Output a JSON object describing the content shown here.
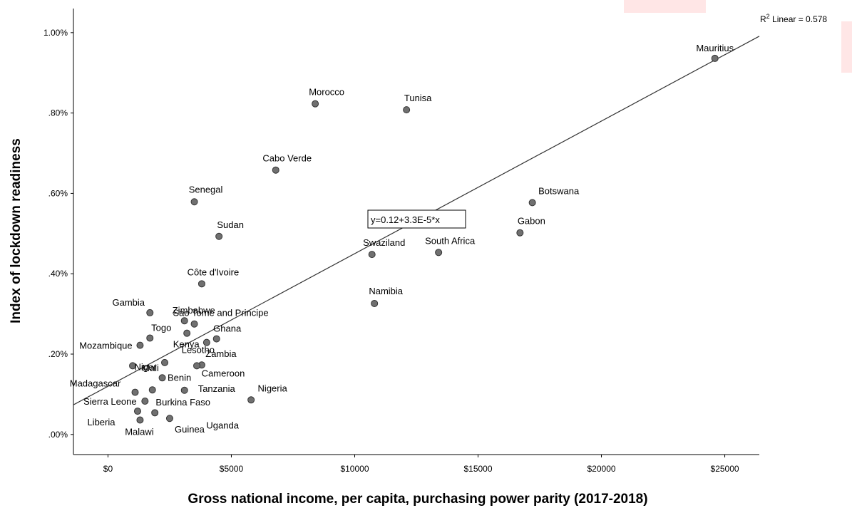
{
  "chart_data": {
    "type": "scatter",
    "xlabel": "Gross national income, per capita, purchasing power parity (2017-2018)",
    "ylabel": "Index of lockdown readiness",
    "xlim": [
      -1400,
      26400
    ],
    "ylim": [
      -0.05,
      1.06
    ],
    "x_ticks": [
      0,
      5000,
      10000,
      15000,
      20000,
      25000
    ],
    "x_tick_labels": [
      "$0",
      "$5000",
      "$10000",
      "$15000",
      "$20000",
      "$25000"
    ],
    "y_ticks": [
      0.0,
      0.2,
      0.4,
      0.6,
      0.8,
      1.0
    ],
    "y_tick_labels": [
      ".00%",
      ".20%",
      ".40%",
      ".60%",
      ".80%",
      "1.00%"
    ],
    "grid": false,
    "marker_color": "#707070",
    "fit_line": {
      "intercept": 0.12,
      "slope": 3.3e-05,
      "equation_label": "y=0.12+3.3E-5*x",
      "r2_label_prefix": "R",
      "r2_label_sup": "2",
      "r2_label_suffix": " Linear = 0.578"
    },
    "points": [
      {
        "label": "Mauritius",
        "x": 24600,
        "y": 0.936
      },
      {
        "label": "Morocco",
        "x": 8400,
        "y": 0.823
      },
      {
        "label": "Tunisa",
        "x": 12100,
        "y": 0.808
      },
      {
        "label": "Cabo Verde",
        "x": 6800,
        "y": 0.658
      },
      {
        "label": "Senegal",
        "x": 3500,
        "y": 0.579
      },
      {
        "label": "Botswana",
        "x": 17200,
        "y": 0.577
      },
      {
        "label": "Gabon",
        "x": 16700,
        "y": 0.502
      },
      {
        "label": "Sudan",
        "x": 4500,
        "y": 0.493
      },
      {
        "label": "South Africa",
        "x": 13400,
        "y": 0.453
      },
      {
        "label": "Swaziland",
        "x": 10700,
        "y": 0.448
      },
      {
        "label": "Côte d'Ivoire",
        "x": 3800,
        "y": 0.375
      },
      {
        "label": "Namibia",
        "x": 10800,
        "y": 0.326
      },
      {
        "label": "Gambia",
        "x": 1700,
        "y": 0.303
      },
      {
        "label": "Zimbabwe",
        "x": 3100,
        "y": 0.283
      },
      {
        "label": "Sao Tome and Principe",
        "x": 3500,
        "y": 0.275
      },
      {
        "label": "Togo",
        "x": 1700,
        "y": 0.24
      },
      {
        "label": "Ghana",
        "x": 4400,
        "y": 0.238
      },
      {
        "label": "Kenya",
        "x": 3200,
        "y": 0.252
      },
      {
        "label": "Mozambique",
        "x": 1300,
        "y": 0.222
      },
      {
        "label": "Lesotho",
        "x": 4000,
        "y": 0.229
      },
      {
        "label": "Mali",
        "x": 2300,
        "y": 0.179
      },
      {
        "label": "Zambia",
        "x": 3800,
        "y": 0.173
      },
      {
        "label": "Cameroon",
        "x": 3600,
        "y": 0.171
      },
      {
        "label": "Niger",
        "x": 1000,
        "y": 0.171
      },
      {
        "label": "Benin",
        "x": 2200,
        "y": 0.141
      },
      {
        "label": "Madagascar",
        "x": 1100,
        "y": 0.105
      },
      {
        "label": "Tanzania",
        "x": 3100,
        "y": 0.11
      },
      {
        "label": "Burkina Faso",
        "x": 1800,
        "y": 0.111
      },
      {
        "label": "Nigeria",
        "x": 5800,
        "y": 0.086
      },
      {
        "label": "Sierra Leone",
        "x": 1500,
        "y": 0.083
      },
      {
        "label": "Liberia",
        "x": 1200,
        "y": 0.058
      },
      {
        "label": "Guinea",
        "x": 2500,
        "y": 0.04
      },
      {
        "label": "Uganda",
        "x": 1900,
        "y": 0.054
      },
      {
        "label": "Malawi",
        "x": 1300,
        "y": 0.036
      }
    ]
  }
}
